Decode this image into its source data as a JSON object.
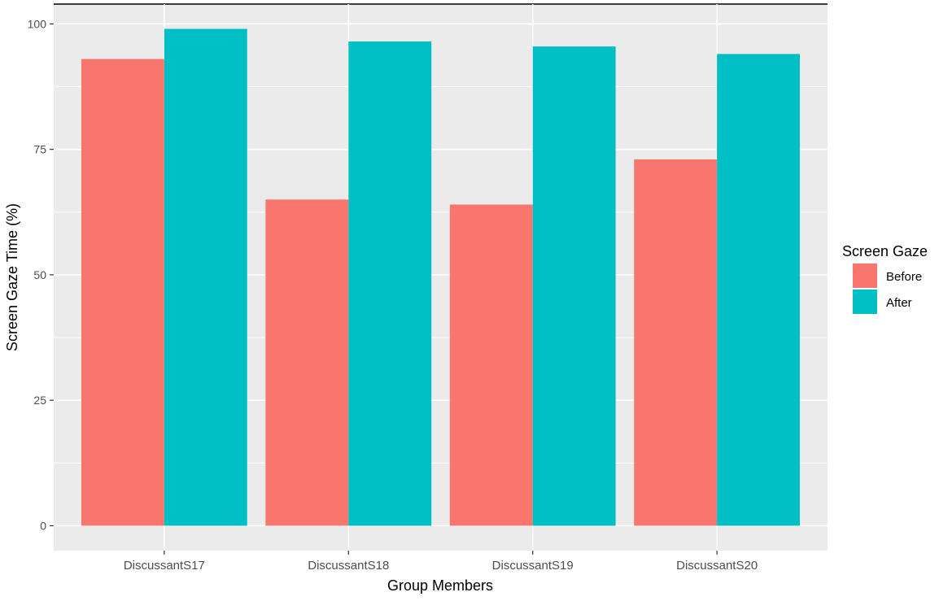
{
  "chart_data": {
    "type": "bar",
    "xlabel": "Group Members",
    "ylabel": "Screen Gaze Time (%)",
    "categories": [
      "DiscussantS17",
      "DiscussantS18",
      "DiscussantS19",
      "DiscussantS20"
    ],
    "series": [
      {
        "name": "Before",
        "color": "#F8766D",
        "values": [
          93,
          65,
          64,
          73
        ]
      },
      {
        "name": "After",
        "color": "#00BFC4",
        "values": [
          99,
          96.5,
          95.5,
          94
        ]
      }
    ],
    "yticks": [
      0,
      25,
      50,
      75,
      100
    ],
    "ylim": [
      -4.95,
      103.95
    ],
    "grid": true,
    "legend": {
      "title": "Screen Gaze",
      "position": "right"
    },
    "panel_background": "#EBEBEB",
    "grid_color": "#FFFFFF"
  }
}
